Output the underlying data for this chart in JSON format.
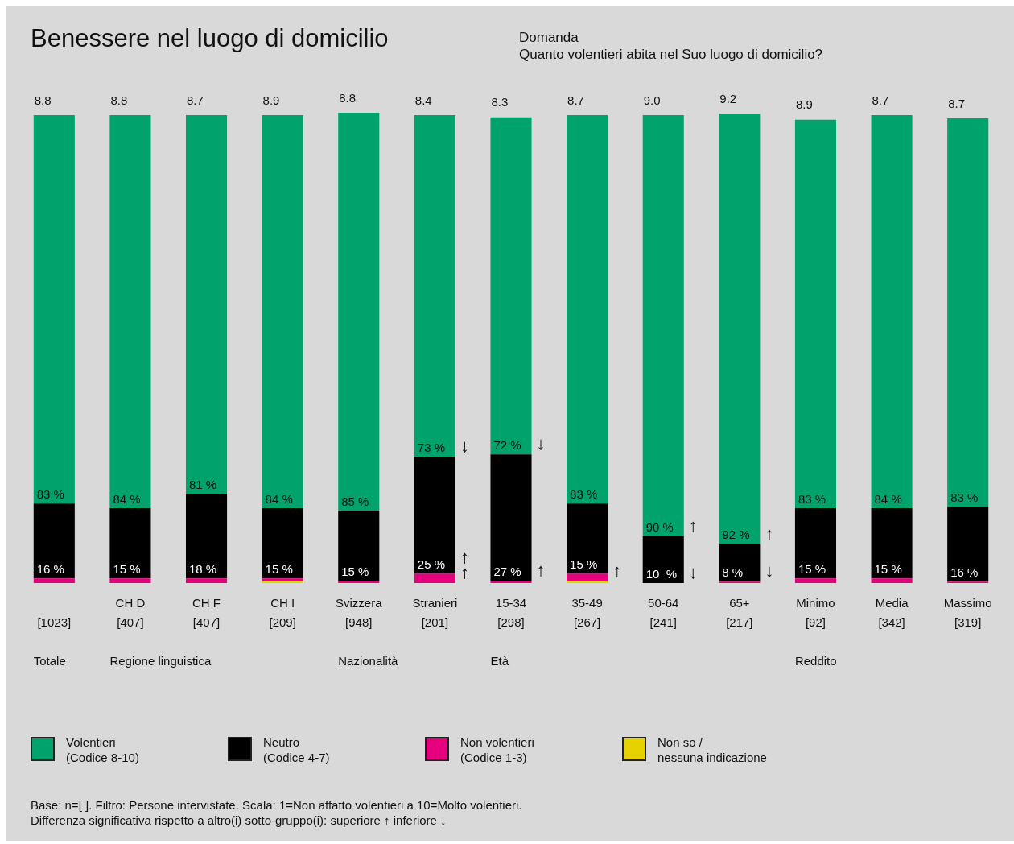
{
  "chart_data": {
    "type": "bar",
    "title": "Benessere nel luogo di domicilio",
    "subtitle": "Quanto volentieri abita nel Suo luogo di domicilio?",
    "stacked": true,
    "categories": [
      "[1023]",
      "CH D\n[407]",
      "CH F\n[407]",
      "CH I\n[209]",
      "Svizzera\n[948]",
      "Stranieri\n[201]",
      "15-34\n[298]",
      "35-49\n[267]",
      "50-64\n[241]",
      "65+\n[217]",
      "Minimo\n[92]",
      "Media\n[342]",
      "Massimo\n[319]"
    ],
    "series": [
      {
        "name": "Non so /\nnessuna indicazione",
        "color": "#e6d200",
        "values": [
          0,
          0,
          0,
          0.4,
          0,
          0,
          0,
          0.4,
          0,
          0,
          0,
          0,
          0
        ]
      },
      {
        "name": "Non volentieri\n(Codice 1-3)",
        "color": "#e6007e",
        "values": [
          1,
          1,
          1,
          0.6,
          0.5,
          2,
          0.5,
          1.6,
          0,
          0.3,
          1,
          1,
          0.3
        ]
      },
      {
        "name": "Neutro\n(Codice 4-7)",
        "color": "#000000",
        "values": [
          16,
          15,
          18,
          15,
          15,
          25,
          27,
          15,
          10,
          8,
          15,
          15,
          16
        ],
        "value_labels": [
          "16 %",
          "15 %",
          "18 %",
          "15 %",
          "15 %",
          "25 %",
          "27 %",
          "15 %",
          "10  %",
          "8 %",
          "15 %",
          "15 %",
          "16 %"
        ]
      },
      {
        "name": "Volentieri\n(Codice 8-10)",
        "color": "#00a36b",
        "values": [
          83,
          84,
          81,
          84,
          85,
          73,
          72,
          83,
          90,
          92,
          83,
          84,
          83
        ],
        "value_labels": [
          "83 %",
          "84 %",
          "81 %",
          "84 %",
          "85 %",
          "73 %",
          "72 %",
          "83 %",
          "90 %",
          "92 %",
          "83 %",
          "84 %",
          "83 %"
        ]
      }
    ],
    "ylim": [
      0,
      100.5
    ],
    "tick_labels": "x",
    "grid": false,
    "legend": "bottom",
    "annotations": [
      "Domanda",
      "Totale",
      "Regione linguistica",
      "Nazionalità",
      "Età",
      "Reddito",
      "Base: n=[ ]. Filtro: Persone intervistate. Scala: 1=Non affatto volentieri a 10=Molto volentieri.",
      "Differenza significativa rispetto a altro(i)  sotto-gruppo(i): superiore ↑  inferiore ↓",
      {
        "text": "8.8",
        "x": "[1023]",
        "y": 100
      },
      {
        "text": "8.8",
        "x": "CH D\n[407]",
        "y": 100
      },
      {
        "text": "8.7",
        "x": "CH F\n[407]",
        "y": 100
      },
      {
        "text": "8.9",
        "x": "CH I\n[209]",
        "y": 100
      },
      {
        "text": "8.8",
        "x": "Svizzera\n[948]",
        "y": 100.5
      },
      {
        "text": "8.4",
        "x": "Stranieri\n[201]",
        "y": 100
      },
      {
        "text": "8.3",
        "x": "15-34\n[298]",
        "y": 99.5
      },
      {
        "text": "8.7",
        "x": "35-49\n[267]",
        "y": 100
      },
      {
        "text": "9.0",
        "x": "50-64\n[241]",
        "y": 100
      },
      {
        "text": "9.2",
        "x": "65+\n[217]",
        "y": 100.3
      },
      {
        "text": "8.9",
        "x": "Minimo\n[92]",
        "y": 99
      },
      {
        "text": "8.7",
        "x": "Media\n[342]",
        "y": 100
      },
      {
        "text": "8.7",
        "x": "Massimo\n[319]",
        "y": 99.3
      },
      {
        "text": "↓",
        "x": "Stranieri\n[201]",
        "y": 27
      },
      {
        "text": "↑",
        "x": "Stranieri\n[201]",
        "y": 2
      },
      {
        "text": "↑",
        "x": "Stranieri\n[201]",
        "y": 0
      },
      {
        "text": "↓",
        "x": "15-34\n[298]",
        "y": 27.5
      },
      {
        "text": "↑",
        "x": "15-34\n[298]",
        "y": 0.5
      },
      {
        "text": "↑",
        "x": "35-49\n[267]",
        "y": 0.4
      },
      {
        "text": "↑",
        "x": "50-64\n[241]",
        "y": 10
      },
      {
        "text": "↓",
        "x": "50-64\n[241]",
        "y": 0
      },
      {
        "text": "↑",
        "x": "65+\n[217]",
        "y": 8.3
      },
      {
        "text": "↓",
        "x": "65+\n[217]",
        "y": 0.3
      }
    ]
  }
}
